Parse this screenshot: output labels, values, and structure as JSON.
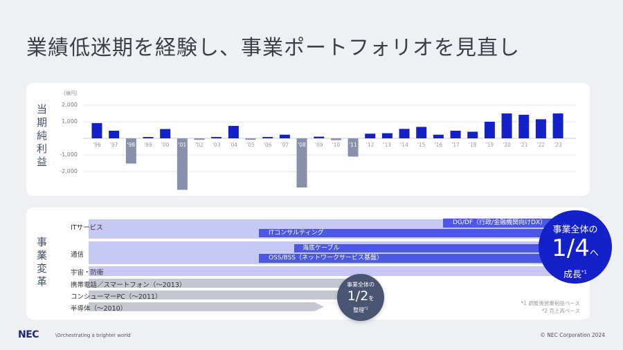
{
  "title": "業績低迷期を経験し、事業ポートフォリオを見直し",
  "chart_data": {
    "type": "bar",
    "ylabel": "当期純利益",
    "unit": "［億円］",
    "ylim": [
      -3200,
      2300
    ],
    "yticks": [
      {
        "v": 2000,
        "label": "2,000"
      },
      {
        "v": 1000,
        "label": "1,000"
      },
      {
        "v": -1000,
        "label": "-1,000"
      },
      {
        "v": -2000,
        "label": "-2,000"
      }
    ],
    "categories": [
      "'96",
      "'97",
      "'98",
      "'99",
      "'00",
      "'01",
      "'02",
      "'03",
      "'04",
      "'05",
      "'06",
      "'07",
      "'08",
      "'09",
      "'10",
      "'11",
      "'12",
      "'13",
      "'14",
      "'15",
      "'16",
      "'17",
      "'18",
      "'19",
      "'20",
      "'21",
      "'22",
      "'23"
    ],
    "values": [
      920,
      460,
      -1520,
      80,
      560,
      -3100,
      -90,
      80,
      750,
      -90,
      80,
      220,
      -2960,
      100,
      -110,
      -1100,
      280,
      310,
      570,
      690,
      220,
      460,
      400,
      1000,
      1500,
      1420,
      1150,
      1500
    ],
    "colors": {
      "positive": "#1420c8",
      "negative": "#8890ab"
    },
    "grid": true
  },
  "transform": {
    "label": "事業変革",
    "it_services": "ITサービス",
    "dgdf": "DG/DF（行政/金融機関向けDX）",
    "it_consulting": "ITコンサルティング",
    "telecom": "通信",
    "submarine": "海底ケーブル",
    "ossbss": "OSS/BSS（ネットワークサービス基盤）",
    "space": "宇宙・防衛",
    "mobile": "携帯電話／スマートフォン（〜2013）",
    "pc": "コンシューマーPC（〜2011）",
    "semi": "半導体（〜2010）",
    "growth": {
      "top": "事業全体の",
      "big": "1/4",
      "suffix": "へ",
      "bottom": "成長",
      "note": "*1"
    },
    "reorg": {
      "top": "事業全体の",
      "big": "1/2",
      "suffix": "を",
      "bottom": "整理",
      "note": "*2"
    },
    "footnote1": "*1 調整後営業利益ベース",
    "footnote2": "*2 売上高ベース"
  },
  "footer": {
    "logo": "NEC",
    "tagline": "\\Orchestrating a brighter world",
    "copyright": "© NEC Corporation 2024"
  }
}
